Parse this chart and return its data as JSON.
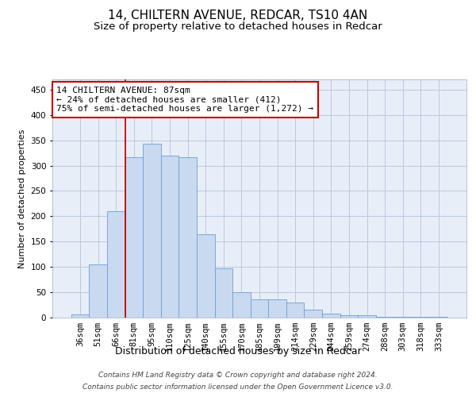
{
  "title1": "14, CHILTERN AVENUE, REDCAR, TS10 4AN",
  "title2": "Size of property relative to detached houses in Redcar",
  "xlabel": "Distribution of detached houses by size in Redcar",
  "ylabel": "Number of detached properties",
  "categories": [
    "36sqm",
    "51sqm",
    "66sqm",
    "81sqm",
    "95sqm",
    "110sqm",
    "125sqm",
    "140sqm",
    "155sqm",
    "170sqm",
    "185sqm",
    "199sqm",
    "214sqm",
    "229sqm",
    "244sqm",
    "259sqm",
    "274sqm",
    "288sqm",
    "303sqm",
    "318sqm",
    "333sqm"
  ],
  "values": [
    7,
    105,
    210,
    317,
    343,
    319,
    317,
    165,
    97,
    50,
    36,
    36,
    29,
    15,
    8,
    5,
    5,
    2,
    1,
    1,
    2
  ],
  "bar_color": "#c9d9ef",
  "bar_edge_color": "#6a9fd8",
  "grid_color": "#b8c8e0",
  "annotation_text_line1": "14 CHILTERN AVENUE: 87sqm",
  "annotation_text_line2": "← 24% of detached houses are smaller (412)",
  "annotation_text_line3": "75% of semi-detached houses are larger (1,272) →",
  "annotation_box_color": "#ffffff",
  "annotation_box_edge": "#cc0000",
  "property_line_color": "#cc0000",
  "footer1": "Contains HM Land Registry data © Crown copyright and database right 2024.",
  "footer2": "Contains public sector information licensed under the Open Government Licence v3.0.",
  "ylim": [
    0,
    470
  ],
  "yticks": [
    0,
    50,
    100,
    150,
    200,
    250,
    300,
    350,
    400,
    450
  ],
  "bg_color": "#e8eef8",
  "title1_fontsize": 11,
  "title2_fontsize": 9.5,
  "xlabel_fontsize": 9,
  "ylabel_fontsize": 8,
  "tick_fontsize": 7.5,
  "footer_fontsize": 6.5,
  "annotation_fontsize": 8
}
